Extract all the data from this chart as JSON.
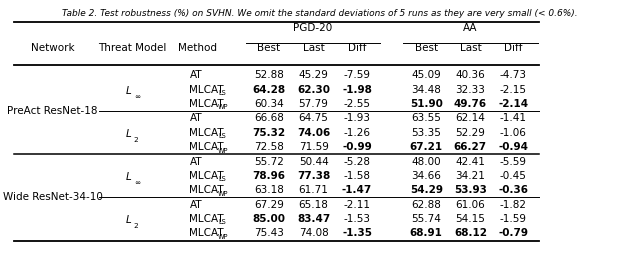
{
  "title": "Table 2. Test robustness (%) on SVHN. We omit the standard deviations of 5 runs as they are very small (< 0.6%).",
  "rows": [
    {
      "network": "PreAct ResNet-18",
      "threat": "L_inf",
      "method": "AT",
      "pgd_best": "52.88",
      "pgd_last": "45.29",
      "pgd_diff": "-7.59",
      "aa_best": "45.09",
      "aa_last": "40.36",
      "aa_diff": "-4.73",
      "pgd_bold": [],
      "aa_bold": []
    },
    {
      "network": "",
      "threat": "",
      "method": "MLCAT_LS",
      "pgd_best": "64.28",
      "pgd_last": "62.30",
      "pgd_diff": "-1.98",
      "aa_best": "34.48",
      "aa_last": "32.33",
      "aa_diff": "-2.15",
      "pgd_bold": [
        "best",
        "last",
        "diff"
      ],
      "aa_bold": []
    },
    {
      "network": "",
      "threat": "",
      "method": "MLCAT_WP",
      "pgd_best": "60.34",
      "pgd_last": "57.79",
      "pgd_diff": "-2.55",
      "aa_best": "51.90",
      "aa_last": "49.76",
      "aa_diff": "-2.14",
      "pgd_bold": [],
      "aa_bold": [
        "best",
        "last",
        "diff"
      ]
    },
    {
      "network": "",
      "threat": "L_2",
      "method": "AT",
      "pgd_best": "66.68",
      "pgd_last": "64.75",
      "pgd_diff": "-1.93",
      "aa_best": "63.55",
      "aa_last": "62.14",
      "aa_diff": "-1.41",
      "pgd_bold": [],
      "aa_bold": []
    },
    {
      "network": "",
      "threat": "",
      "method": "MLCAT_LS",
      "pgd_best": "75.32",
      "pgd_last": "74.06",
      "pgd_diff": "-1.26",
      "aa_best": "53.35",
      "aa_last": "52.29",
      "aa_diff": "-1.06",
      "pgd_bold": [
        "best",
        "last"
      ],
      "aa_bold": []
    },
    {
      "network": "",
      "threat": "",
      "method": "MLCAT_WP",
      "pgd_best": "72.58",
      "pgd_last": "71.59",
      "pgd_diff": "-0.99",
      "aa_best": "67.21",
      "aa_last": "66.27",
      "aa_diff": "-0.94",
      "pgd_bold": [
        "diff"
      ],
      "aa_bold": [
        "best",
        "last",
        "diff"
      ]
    },
    {
      "network": "Wide ResNet-34-10",
      "threat": "L_inf",
      "method": "AT",
      "pgd_best": "55.72",
      "pgd_last": "50.44",
      "pgd_diff": "-5.28",
      "aa_best": "48.00",
      "aa_last": "42.41",
      "aa_diff": "-5.59",
      "pgd_bold": [],
      "aa_bold": []
    },
    {
      "network": "",
      "threat": "",
      "method": "MLCAT_LS",
      "pgd_best": "78.96",
      "pgd_last": "77.38",
      "pgd_diff": "-1.58",
      "aa_best": "34.66",
      "aa_last": "34.21",
      "aa_diff": "-0.45",
      "pgd_bold": [
        "best",
        "last"
      ],
      "aa_bold": []
    },
    {
      "network": "",
      "threat": "",
      "method": "MLCAT_WP",
      "pgd_best": "63.18",
      "pgd_last": "61.71",
      "pgd_diff": "-1.47",
      "aa_best": "54.29",
      "aa_last": "53.93",
      "aa_diff": "-0.36",
      "pgd_bold": [
        "diff"
      ],
      "aa_bold": [
        "best",
        "last",
        "diff"
      ]
    },
    {
      "network": "",
      "threat": "L_2",
      "method": "AT",
      "pgd_best": "67.29",
      "pgd_last": "65.18",
      "pgd_diff": "-2.11",
      "aa_best": "62.88",
      "aa_last": "61.06",
      "aa_diff": "-1.82",
      "pgd_bold": [],
      "aa_bold": []
    },
    {
      "network": "",
      "threat": "",
      "method": "MLCAT_LS",
      "pgd_best": "85.00",
      "pgd_last": "83.47",
      "pgd_diff": "-1.53",
      "aa_best": "55.74",
      "aa_last": "54.15",
      "aa_diff": "-1.59",
      "pgd_bold": [
        "best",
        "last"
      ],
      "aa_bold": []
    },
    {
      "network": "",
      "threat": "",
      "method": "MLCAT_WP",
      "pgd_best": "75.43",
      "pgd_last": "74.08",
      "pgd_diff": "-1.35",
      "aa_best": "68.91",
      "aa_last": "68.12",
      "aa_diff": "-0.79",
      "pgd_bold": [
        "diff"
      ],
      "aa_bold": [
        "best",
        "last",
        "diff"
      ]
    }
  ],
  "col_x_norm": {
    "network": 0.082,
    "threat": 0.207,
    "method": 0.308,
    "pgd_best": 0.42,
    "pgd_last": 0.49,
    "pgd_diff": 0.558,
    "aa_best": 0.666,
    "aa_last": 0.735,
    "aa_diff": 0.802
  },
  "title_fontsize": 6.5,
  "header_fontsize": 7.5,
  "data_fontsize": 7.5,
  "sub_fontsize": 4.8
}
